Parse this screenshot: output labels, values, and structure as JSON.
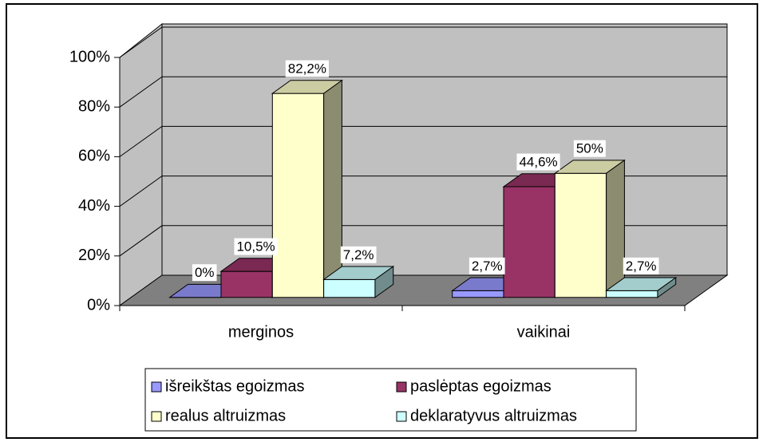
{
  "chart_data": {
    "type": "bar3d",
    "categories": [
      "merginos",
      "vaikinai"
    ],
    "series": [
      {
        "name": "išreikštas egoizmas",
        "color": "#9999ff",
        "values": [
          0,
          2.7
        ],
        "value_labels": [
          "0%",
          "2,7%"
        ]
      },
      {
        "name": "paslėptas egoizmas",
        "color": "#993366",
        "values": [
          10.5,
          44.6
        ],
        "value_labels": [
          "10,5%",
          "44,6%"
        ]
      },
      {
        "name": "realus altruizmas",
        "color": "#ffffcc",
        "values": [
          82.2,
          50
        ],
        "value_labels": [
          "82,2%",
          "50%"
        ]
      },
      {
        "name": "deklaratyvus altruizmas",
        "color": "#ccffff",
        "values": [
          7.2,
          2.7
        ],
        "value_labels": [
          "7,2%",
          "2,7%"
        ]
      }
    ],
    "ylim": [
      0,
      100
    ],
    "yticks": [
      {
        "value": 0,
        "label": "0%"
      },
      {
        "value": 20,
        "label": "20%"
      },
      {
        "value": 40,
        "label": "40%"
      },
      {
        "value": 60,
        "label": "60%"
      },
      {
        "value": 80,
        "label": "80%"
      },
      {
        "value": 100,
        "label": "100%"
      }
    ],
    "grid": true,
    "legend": "bottom"
  }
}
